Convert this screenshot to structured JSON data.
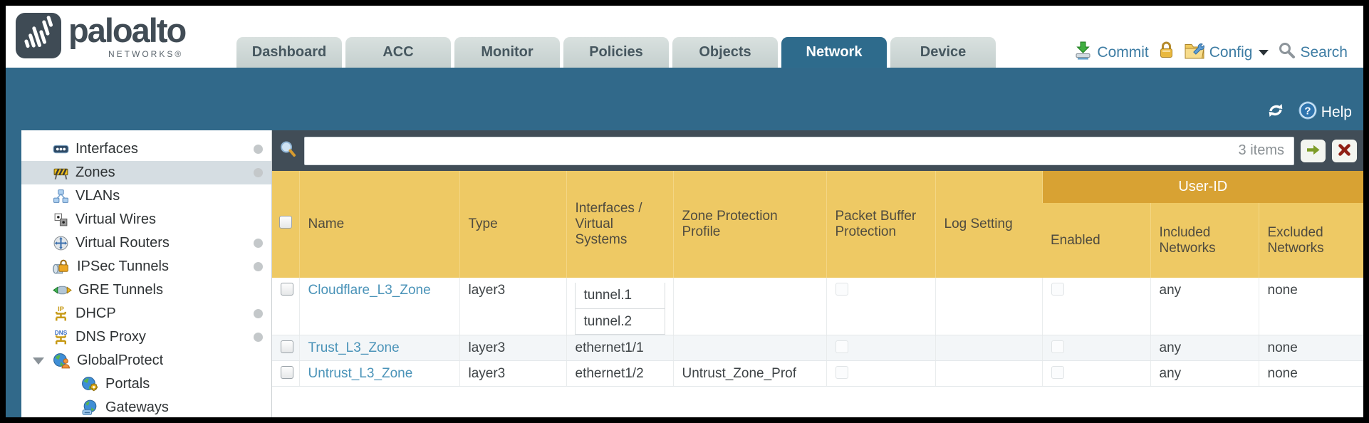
{
  "header": {
    "logo": {
      "brand": "paloalto",
      "subtitle": "NETWORKS®"
    },
    "tabs": [
      {
        "label": "Dashboard",
        "active": false
      },
      {
        "label": "ACC",
        "active": false
      },
      {
        "label": "Monitor",
        "active": false
      },
      {
        "label": "Policies",
        "active": false
      },
      {
        "label": "Objects",
        "active": false
      },
      {
        "label": "Network",
        "active": true
      },
      {
        "label": "Device",
        "active": false
      }
    ],
    "actions": {
      "commit_label": "Commit",
      "config_label": "Config",
      "search_label": "Search"
    }
  },
  "toolbar": {
    "help_label": "Help"
  },
  "sidebar": {
    "items": [
      {
        "label": "Interfaces",
        "icon": "interfaces-icon",
        "dot": true
      },
      {
        "label": "Zones",
        "icon": "zones-icon",
        "dot": true,
        "selected": true
      },
      {
        "label": "VLANs",
        "icon": "vlans-icon"
      },
      {
        "label": "Virtual Wires",
        "icon": "virtual-wires-icon"
      },
      {
        "label": "Virtual Routers",
        "icon": "virtual-routers-icon",
        "dot": true
      },
      {
        "label": "IPSec Tunnels",
        "icon": "ipsec-tunnels-icon",
        "dot": true
      },
      {
        "label": "GRE Tunnels",
        "icon": "gre-tunnels-icon"
      },
      {
        "label": "DHCP",
        "icon": "dhcp-icon",
        "dot": true
      },
      {
        "label": "DNS Proxy",
        "icon": "dns-proxy-icon",
        "dot": true
      },
      {
        "label": "GlobalProtect",
        "icon": "globalprotect-icon",
        "expanded": true
      },
      {
        "label": "Portals",
        "icon": "portals-icon",
        "child": true
      },
      {
        "label": "Gateways",
        "icon": "gateways-icon",
        "child": true
      }
    ]
  },
  "filter": {
    "value": "",
    "count_label": "3 items"
  },
  "table": {
    "group_header": "User-ID",
    "columns": [
      "Name",
      "Type",
      "Interfaces / Virtual Systems",
      "Zone Protection Profile",
      "Packet Buffer Protection",
      "Log Setting",
      "Enabled",
      "Included Networks",
      "Excluded Networks"
    ],
    "rows": [
      {
        "name": "Cloudflare_L3_Zone",
        "type": "layer3",
        "interfaces": [
          "tunnel.1",
          "tunnel.2"
        ],
        "zone_protection_profile": "",
        "packet_buffer_protection_checked": false,
        "log_setting": "",
        "user_id_enabled_checked": false,
        "included_networks": "any",
        "excluded_networks": "none"
      },
      {
        "name": "Trust_L3_Zone",
        "type": "layer3",
        "interfaces": [
          "ethernet1/1"
        ],
        "zone_protection_profile": "",
        "packet_buffer_protection_checked": false,
        "log_setting": "",
        "user_id_enabled_checked": false,
        "included_networks": "any",
        "excluded_networks": "none"
      },
      {
        "name": "Untrust_L3_Zone",
        "type": "layer3",
        "interfaces": [
          "ethernet1/2"
        ],
        "zone_protection_profile": "Untrust_Zone_Prof",
        "packet_buffer_protection_checked": false,
        "log_setting": "",
        "user_id_enabled_checked": false,
        "included_networks": "any",
        "excluded_networks": "none"
      }
    ]
  },
  "colors": {
    "band_teal": "#31698a",
    "active_tab": "#2e6b8c",
    "header_gold": "#eec964",
    "group_header_gold": "#d8a233",
    "filter_slate": "#414d57",
    "link_blue": "#4a93b8",
    "row_alt": "#f3f6f8"
  }
}
